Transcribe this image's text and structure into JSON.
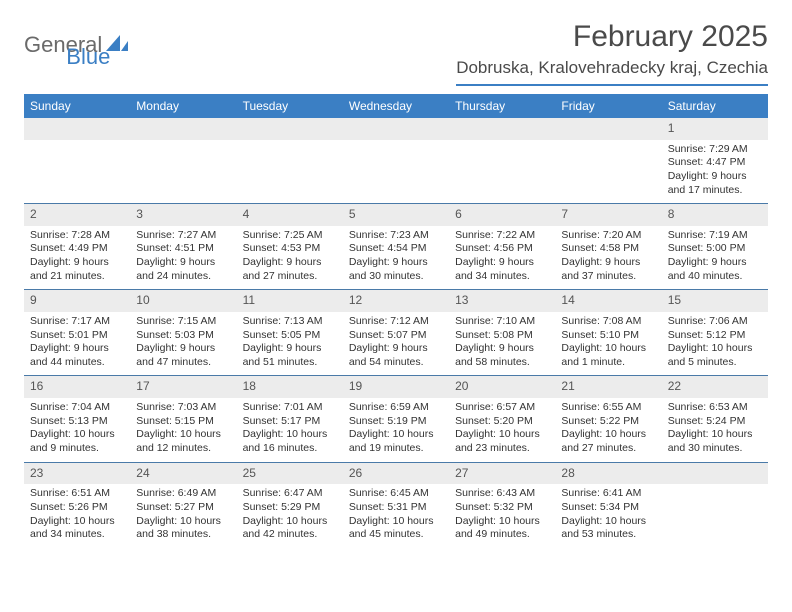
{
  "logo": {
    "text1": "General",
    "text2": "Blue"
  },
  "title": "February 2025",
  "location": "Dobruska, Kralovehradecky kraj, Czechia",
  "colors": {
    "header_bg": "#3b7fc4",
    "header_text": "#ffffff",
    "row_alt_bg": "#ececec",
    "text": "#333333",
    "divider": "#4a7aa8"
  },
  "days_of_week": [
    "Sunday",
    "Monday",
    "Tuesday",
    "Wednesday",
    "Thursday",
    "Friday",
    "Saturday"
  ],
  "weeks": [
    [
      {
        "n": "",
        "sr": "",
        "ss": "",
        "dl": ""
      },
      {
        "n": "",
        "sr": "",
        "ss": "",
        "dl": ""
      },
      {
        "n": "",
        "sr": "",
        "ss": "",
        "dl": ""
      },
      {
        "n": "",
        "sr": "",
        "ss": "",
        "dl": ""
      },
      {
        "n": "",
        "sr": "",
        "ss": "",
        "dl": ""
      },
      {
        "n": "",
        "sr": "",
        "ss": "",
        "dl": ""
      },
      {
        "n": "1",
        "sr": "Sunrise: 7:29 AM",
        "ss": "Sunset: 4:47 PM",
        "dl": "Daylight: 9 hours and 17 minutes."
      }
    ],
    [
      {
        "n": "2",
        "sr": "Sunrise: 7:28 AM",
        "ss": "Sunset: 4:49 PM",
        "dl": "Daylight: 9 hours and 21 minutes."
      },
      {
        "n": "3",
        "sr": "Sunrise: 7:27 AM",
        "ss": "Sunset: 4:51 PM",
        "dl": "Daylight: 9 hours and 24 minutes."
      },
      {
        "n": "4",
        "sr": "Sunrise: 7:25 AM",
        "ss": "Sunset: 4:53 PM",
        "dl": "Daylight: 9 hours and 27 minutes."
      },
      {
        "n": "5",
        "sr": "Sunrise: 7:23 AM",
        "ss": "Sunset: 4:54 PM",
        "dl": "Daylight: 9 hours and 30 minutes."
      },
      {
        "n": "6",
        "sr": "Sunrise: 7:22 AM",
        "ss": "Sunset: 4:56 PM",
        "dl": "Daylight: 9 hours and 34 minutes."
      },
      {
        "n": "7",
        "sr": "Sunrise: 7:20 AM",
        "ss": "Sunset: 4:58 PM",
        "dl": "Daylight: 9 hours and 37 minutes."
      },
      {
        "n": "8",
        "sr": "Sunrise: 7:19 AM",
        "ss": "Sunset: 5:00 PM",
        "dl": "Daylight: 9 hours and 40 minutes."
      }
    ],
    [
      {
        "n": "9",
        "sr": "Sunrise: 7:17 AM",
        "ss": "Sunset: 5:01 PM",
        "dl": "Daylight: 9 hours and 44 minutes."
      },
      {
        "n": "10",
        "sr": "Sunrise: 7:15 AM",
        "ss": "Sunset: 5:03 PM",
        "dl": "Daylight: 9 hours and 47 minutes."
      },
      {
        "n": "11",
        "sr": "Sunrise: 7:13 AM",
        "ss": "Sunset: 5:05 PM",
        "dl": "Daylight: 9 hours and 51 minutes."
      },
      {
        "n": "12",
        "sr": "Sunrise: 7:12 AM",
        "ss": "Sunset: 5:07 PM",
        "dl": "Daylight: 9 hours and 54 minutes."
      },
      {
        "n": "13",
        "sr": "Sunrise: 7:10 AM",
        "ss": "Sunset: 5:08 PM",
        "dl": "Daylight: 9 hours and 58 minutes."
      },
      {
        "n": "14",
        "sr": "Sunrise: 7:08 AM",
        "ss": "Sunset: 5:10 PM",
        "dl": "Daylight: 10 hours and 1 minute."
      },
      {
        "n": "15",
        "sr": "Sunrise: 7:06 AM",
        "ss": "Sunset: 5:12 PM",
        "dl": "Daylight: 10 hours and 5 minutes."
      }
    ],
    [
      {
        "n": "16",
        "sr": "Sunrise: 7:04 AM",
        "ss": "Sunset: 5:13 PM",
        "dl": "Daylight: 10 hours and 9 minutes."
      },
      {
        "n": "17",
        "sr": "Sunrise: 7:03 AM",
        "ss": "Sunset: 5:15 PM",
        "dl": "Daylight: 10 hours and 12 minutes."
      },
      {
        "n": "18",
        "sr": "Sunrise: 7:01 AM",
        "ss": "Sunset: 5:17 PM",
        "dl": "Daylight: 10 hours and 16 minutes."
      },
      {
        "n": "19",
        "sr": "Sunrise: 6:59 AM",
        "ss": "Sunset: 5:19 PM",
        "dl": "Daylight: 10 hours and 19 minutes."
      },
      {
        "n": "20",
        "sr": "Sunrise: 6:57 AM",
        "ss": "Sunset: 5:20 PM",
        "dl": "Daylight: 10 hours and 23 minutes."
      },
      {
        "n": "21",
        "sr": "Sunrise: 6:55 AM",
        "ss": "Sunset: 5:22 PM",
        "dl": "Daylight: 10 hours and 27 minutes."
      },
      {
        "n": "22",
        "sr": "Sunrise: 6:53 AM",
        "ss": "Sunset: 5:24 PM",
        "dl": "Daylight: 10 hours and 30 minutes."
      }
    ],
    [
      {
        "n": "23",
        "sr": "Sunrise: 6:51 AM",
        "ss": "Sunset: 5:26 PM",
        "dl": "Daylight: 10 hours and 34 minutes."
      },
      {
        "n": "24",
        "sr": "Sunrise: 6:49 AM",
        "ss": "Sunset: 5:27 PM",
        "dl": "Daylight: 10 hours and 38 minutes."
      },
      {
        "n": "25",
        "sr": "Sunrise: 6:47 AM",
        "ss": "Sunset: 5:29 PM",
        "dl": "Daylight: 10 hours and 42 minutes."
      },
      {
        "n": "26",
        "sr": "Sunrise: 6:45 AM",
        "ss": "Sunset: 5:31 PM",
        "dl": "Daylight: 10 hours and 45 minutes."
      },
      {
        "n": "27",
        "sr": "Sunrise: 6:43 AM",
        "ss": "Sunset: 5:32 PM",
        "dl": "Daylight: 10 hours and 49 minutes."
      },
      {
        "n": "28",
        "sr": "Sunrise: 6:41 AM",
        "ss": "Sunset: 5:34 PM",
        "dl": "Daylight: 10 hours and 53 minutes."
      },
      {
        "n": "",
        "sr": "",
        "ss": "",
        "dl": ""
      }
    ]
  ]
}
